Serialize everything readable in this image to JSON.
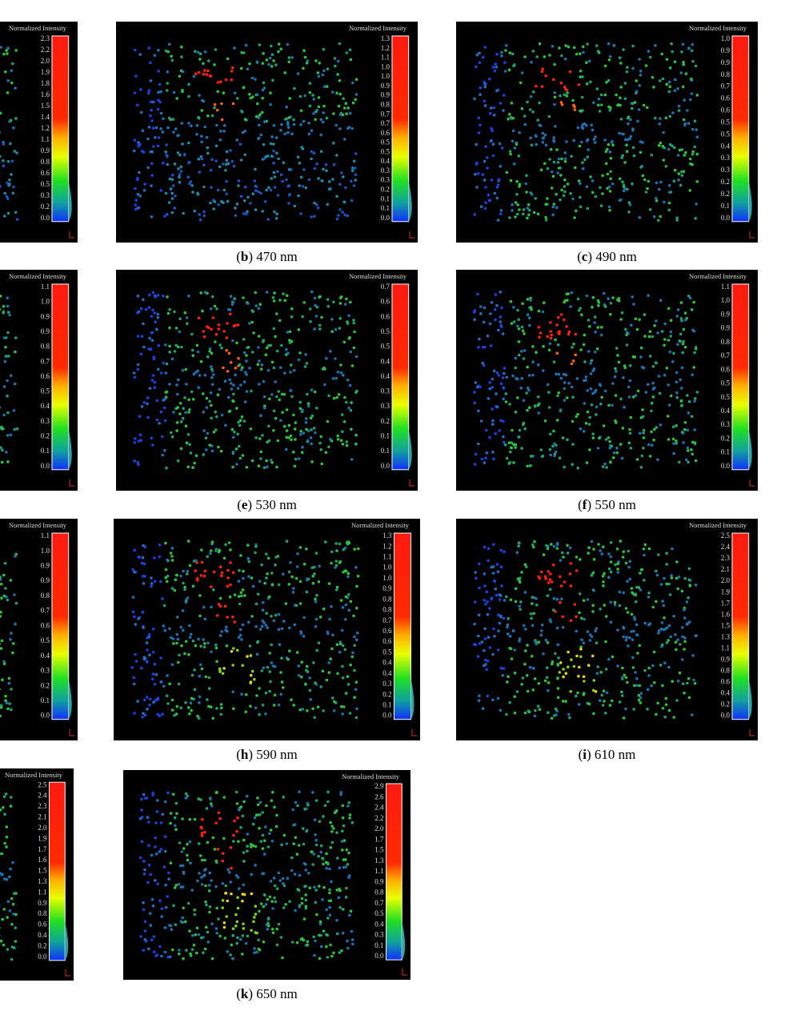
{
  "panels": [
    {
      "title": "Normalized Intensity",
      "ticks": [
        "2.3",
        "2.2",
        "2.0",
        "1.9",
        "1.8",
        "1.6",
        "1.5",
        "1.4",
        "1.2",
        "1.1",
        "0.9",
        "0.8",
        "0.6",
        "0.5",
        "0.3",
        "0.2",
        "0.0"
      ]
    },
    {
      "title": "Normalized Intensity",
      "ticks": [
        "1.3",
        "1.2",
        "1.1",
        "1.0",
        "1.0",
        "0.9",
        "0.9",
        "0.8",
        "0.7",
        "0.7",
        "0.6",
        "0.5",
        "0.5",
        "0.4",
        "0.3",
        "0.3",
        "0.2",
        "0.1",
        "0.1",
        "0.0"
      ],
      "caption": [
        "(",
        "b",
        ") 470 nm"
      ]
    },
    {
      "title": "Normalized Intensity",
      "ticks": [
        "1.0",
        "0.9",
        "0.9",
        "0.8",
        "0.7",
        "0.6",
        "0.6",
        "0.5",
        "0.5",
        "0.4",
        "0.3",
        "0.3",
        "0.2",
        "0.2",
        "0.1",
        "0.0"
      ],
      "caption": [
        "(",
        "c",
        ") 490 nm"
      ]
    },
    {
      "title": "Normalized Intensity",
      "ticks": [
        "1.1",
        "1.0",
        "0.9",
        "0.9",
        "0.8",
        "0.7",
        "0.6",
        "0.5",
        "0.4",
        "0.3",
        "0.2",
        "0.1",
        "0.0"
      ]
    },
    {
      "title": "Normalized Intensity",
      "ticks": [
        "0.7",
        "0.6",
        "0.6",
        "0.5",
        "0.5",
        "0.4",
        "0.4",
        "0.3",
        "0.3",
        "0.2",
        "0.1",
        "0.1",
        "0.0"
      ],
      "caption": [
        "(",
        "e",
        ") 530 nm"
      ]
    },
    {
      "title": "Normalized Intensity",
      "ticks": [
        "1.1",
        "1.0",
        "0.9",
        "0.9",
        "0.8",
        "0.7",
        "0.6",
        "0.5",
        "0.5",
        "0.4",
        "0.3",
        "0.2",
        "0.1",
        "0.0"
      ],
      "caption": [
        "(",
        "f",
        ") 550 nm"
      ]
    },
    {
      "title": "Normalized Intensity",
      "ticks": [
        "1.1",
        "1.0",
        "0.9",
        "0.9",
        "0.8",
        "0.7",
        "0.6",
        "0.5",
        "0.4",
        "0.3",
        "0.2",
        "0.1",
        "0.0"
      ]
    },
    {
      "title": "Normalized Intensity",
      "ticks": [
        "1.3",
        "1.2",
        "1.1",
        "1.0",
        "1.0",
        "0.9",
        "0.8",
        "0.8",
        "0.7",
        "0.6",
        "0.6",
        "0.5",
        "0.4",
        "0.4",
        "0.3",
        "0.2",
        "0.1",
        "0.0"
      ],
      "caption": [
        "(",
        "h",
        ") 590 nm"
      ]
    },
    {
      "title": "Normalized Intensity",
      "ticks": [
        "2.5",
        "2.4",
        "2.3",
        "2.1",
        "2.0",
        "1.9",
        "1.7",
        "1.6",
        "1.5",
        "1.3",
        "1.1",
        "0.9",
        "0.8",
        "0.6",
        "0.4",
        "0.2",
        "0.0"
      ],
      "caption": [
        "(",
        "i",
        ") 610 nm"
      ]
    },
    {
      "title": "Normalized Intensity",
      "ticks": [
        "2.5",
        "2.4",
        "2.3",
        "2.1",
        "2.0",
        "1.9",
        "1.7",
        "1.6",
        "1.5",
        "1.3",
        "1.1",
        "0.9",
        "0.8",
        "0.6",
        "0.4",
        "0.2",
        "0.0"
      ]
    },
    {
      "title": "Normalized Intensity",
      "ticks": [
        "2.9",
        "2.6",
        "2.4",
        "2.2",
        "2.0",
        "1.7",
        "1.5",
        "1.3",
        "1.1",
        "0.9",
        "0.8",
        "0.7",
        "0.5",
        "0.4",
        "0.3",
        "0.1",
        "0.0"
      ],
      "caption": [
        "(",
        "k",
        ") 650 nm"
      ]
    }
  ]
}
